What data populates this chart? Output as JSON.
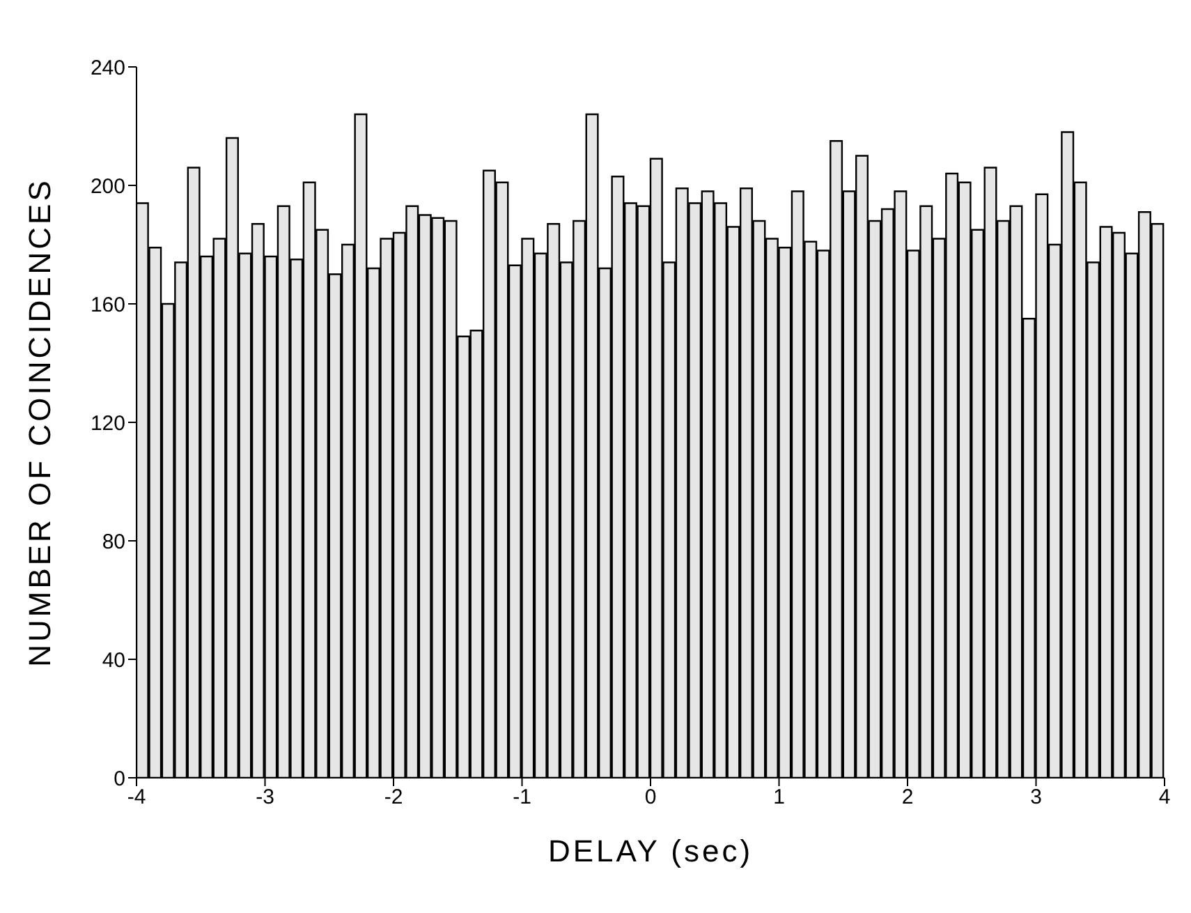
{
  "chart_data": {
    "type": "histogram",
    "xlabel": "DELAY (sec)",
    "ylabel": "NUMBER OF COINCIDENCES",
    "bins": [
      -4,
      -3.9,
      -3.8,
      -3.7,
      -3.6,
      -3.5,
      -3.4,
      -3.3,
      -3.2,
      -3.1,
      -3,
      -2.9,
      -2.8,
      -2.7,
      -2.6,
      -2.5,
      -2.4,
      -2.3,
      -2.2,
      -2.1,
      -2,
      -1.9,
      -1.8,
      -1.7,
      -1.6,
      -1.5,
      -1.4,
      -1.3,
      -1.2,
      -1.1,
      -1,
      -0.9,
      -0.8,
      -0.7,
      -0.6,
      -0.5,
      -0.4,
      -0.3,
      -0.2,
      -0.1,
      0,
      0.1,
      0.2,
      0.3,
      0.4,
      0.5,
      0.6,
      0.7,
      0.8,
      0.9,
      1,
      1.1,
      1.2,
      1.3,
      1.4,
      1.5,
      1.6,
      1.7,
      1.8,
      1.9,
      2,
      2.1,
      2.2,
      2.3,
      2.4,
      2.5,
      2.6,
      2.7,
      2.8,
      2.9,
      3,
      3.1,
      3.2,
      3.3,
      3.4,
      3.5,
      3.6,
      3.7,
      3.8,
      3.9,
      4
    ],
    "values": [
      194,
      179,
      160,
      174,
      206,
      176,
      182,
      216,
      177,
      187,
      176,
      193,
      175,
      201,
      185,
      170,
      180,
      224,
      172,
      182,
      184,
      193,
      190,
      189,
      188,
      149,
      151,
      205,
      201,
      173,
      182,
      177,
      187,
      174,
      188,
      224,
      172,
      203,
      194,
      193,
      209,
      174,
      199,
      194,
      198,
      194,
      186,
      199,
      188,
      182,
      179,
      198,
      181,
      178,
      215,
      198,
      210,
      188,
      192,
      198,
      178,
      193,
      182,
      204,
      201,
      185,
      206,
      188,
      193,
      155,
      197,
      180,
      218,
      201,
      174,
      186,
      184,
      177,
      191,
      187
    ],
    "color": "#e6e6e6",
    "xlim": [
      -4,
      4
    ],
    "xticks": [
      -4,
      -3,
      -2,
      -1,
      0,
      1,
      2,
      3,
      4
    ],
    "ylim": [
      0,
      240
    ],
    "yticks": [
      0,
      40,
      80,
      120,
      160,
      200,
      240
    ],
    "grid": false,
    "legend": false
  }
}
